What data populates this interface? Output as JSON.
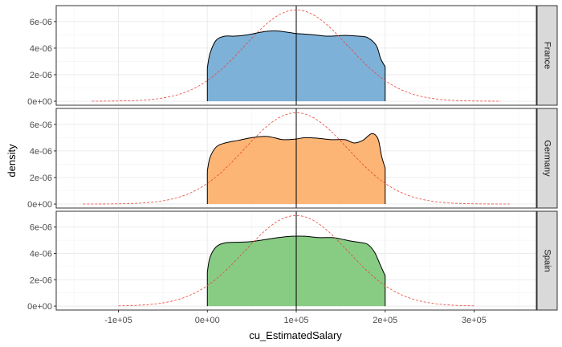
{
  "chart_data": {
    "type": "area",
    "title": "",
    "xlabel": "cu_EstimatedSalary",
    "ylabel": "density",
    "xlim": [
      -170000,
      370000
    ],
    "ylim": [
      -3e-07,
      7.2e-06
    ],
    "x_ticks": [
      -100000,
      0,
      100000,
      200000,
      300000
    ],
    "x_tick_labels": [
      "-1e+05",
      "0e+00",
      "1e+05",
      "2e+05",
      "3e+05"
    ],
    "y_ticks": [
      0,
      2e-06,
      4e-06,
      6e-06
    ],
    "y_tick_labels": [
      "0e+00",
      "2e-06",
      "4e-06",
      "6e-06"
    ],
    "grid": true,
    "vline_x": 100000,
    "normal_curve": {
      "style": "dashed",
      "mean": 100000,
      "sd": 58000
    },
    "facets": [
      {
        "name": "France",
        "color": "#7eb1d8",
        "normal_x_range": [
          -130000,
          330000
        ],
        "density": {
          "x": [
            0,
            3000,
            10000,
            20000,
            30000,
            45000,
            60000,
            75000,
            90000,
            100000,
            110000,
            120000,
            135000,
            150000,
            160000,
            170000,
            180000,
            190000,
            195000,
            200000
          ],
          "y": [
            2.5e-06,
            3.6e-06,
            4.6e-06,
            4.9e-06,
            4.9e-06,
            5e-06,
            5.2e-06,
            5.3e-06,
            5.2e-06,
            5.1e-06,
            5.05e-06,
            5e-06,
            4.9e-06,
            4.95e-06,
            4.95e-06,
            4.9e-06,
            4.8e-06,
            4.2e-06,
            3.2e-06,
            2.6e-06
          ]
        }
      },
      {
        "name": "Germany",
        "color": "#fdb576",
        "normal_x_range": [
          -140000,
          340000
        ],
        "density": {
          "x": [
            0,
            3000,
            10000,
            20000,
            35000,
            50000,
            65000,
            75000,
            85000,
            100000,
            110000,
            125000,
            140000,
            155000,
            165000,
            175000,
            185000,
            192000,
            196000,
            200000
          ],
          "y": [
            2.5e-06,
            3.5e-06,
            4.3e-06,
            4.6e-06,
            4.8e-06,
            5e-06,
            5.1e-06,
            5e-06,
            4.85e-06,
            4.9e-06,
            5e-06,
            4.95e-06,
            4.85e-06,
            4.85e-06,
            4.6e-06,
            4.8e-06,
            5.3e-06,
            4.9e-06,
            3.6e-06,
            2.7e-06
          ]
        }
      },
      {
        "name": "Spain",
        "color": "#88cc84",
        "normal_x_range": [
          -100000,
          300000
        ],
        "density": {
          "x": [
            0,
            3000,
            10000,
            20000,
            35000,
            50000,
            65000,
            80000,
            95000,
            110000,
            125000,
            140000,
            150000,
            160000,
            170000,
            180000,
            188000,
            194000,
            200000
          ],
          "y": [
            2.6e-06,
            3.7e-06,
            4.5e-06,
            4.8e-06,
            4.85e-06,
            4.9e-06,
            5.05e-06,
            5.2e-06,
            5.3e-06,
            5.3e-06,
            5.2e-06,
            5.2e-06,
            5.1e-06,
            4.95e-06,
            4.85e-06,
            4.7e-06,
            4.1e-06,
            3.2e-06,
            2.3e-06
          ]
        }
      }
    ]
  }
}
